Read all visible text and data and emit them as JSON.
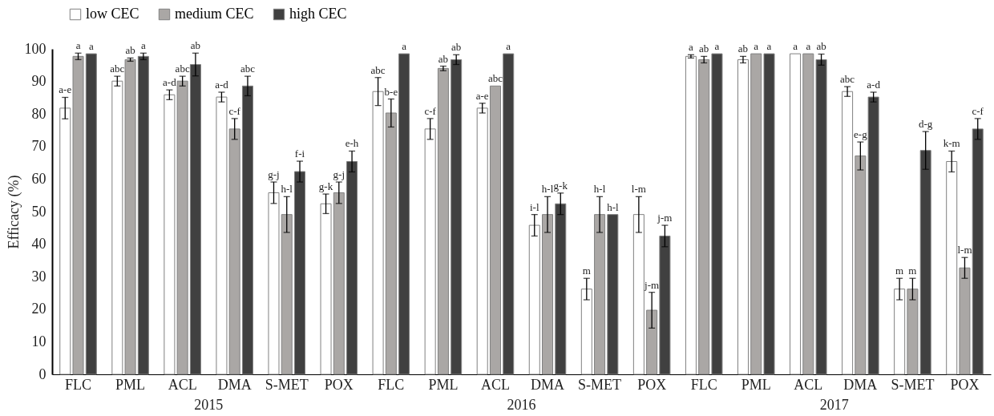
{
  "chart_data": {
    "type": "bar",
    "ylabel": "Efficacy (%)",
    "categories": [
      "FLC",
      "PML",
      "ACL",
      "DMA",
      "S-MET",
      "POX",
      "FLC",
      "PML",
      "ACL",
      "DMA",
      "S-MET",
      "POX",
      "FLC",
      "PML",
      "ACL",
      "DMA",
      "S-MET",
      "POX"
    ],
    "series": [
      {
        "name": "low CEC",
        "color": "#ffffff",
        "values": [
          81.8,
          90.1,
          85.9,
          85.2,
          55.8,
          52.4,
          86.9,
          75.4,
          81.8,
          45.8,
          26.2,
          49.1,
          97.7,
          96.7,
          98.5,
          86.9,
          26.2,
          65.4
        ],
        "errors": [
          3.3,
          1.5,
          1.5,
          1.5,
          3.3,
          3,
          4.3,
          3.2,
          1.5,
          3.3,
          3.3,
          5.5,
          0.5,
          1,
          null,
          1.5,
          3.3,
          3.2
        ],
        "value_labels": [
          "a-e",
          "abc",
          "a-d",
          "a-d",
          "g-j",
          "g-k",
          "abc",
          "c-f",
          "a-e",
          "i-l",
          "m",
          "l-m",
          "a",
          "ab",
          "a",
          "abc",
          "m",
          "k-m"
        ]
      },
      {
        "name": "medium CEC",
        "color": "#aaa7a5",
        "values": [
          97.7,
          96.7,
          90.1,
          75.4,
          49.1,
          55.8,
          80.3,
          94.0,
          88.6,
          49.1,
          49.1,
          19.7,
          96.7,
          98.5,
          98.5,
          67.1,
          26.2,
          32.7
        ],
        "errors": [
          1,
          0.5,
          1.5,
          3.2,
          5.5,
          3.3,
          4.3,
          0.7,
          null,
          5.5,
          5.5,
          5.5,
          1,
          null,
          null,
          4.3,
          3.3,
          3.2
        ],
        "value_labels": [
          "a",
          "ab",
          "abc",
          "c-f",
          "h-l",
          "g-j",
          "b-e",
          "ab",
          "abc",
          "h-l",
          "h-l",
          "j-m",
          "ab",
          "a",
          "a",
          "e-g",
          "m",
          "l-m"
        ]
      },
      {
        "name": "high CEC",
        "color": "#404040",
        "values": [
          98.5,
          97.7,
          95.2,
          88.6,
          62.3,
          65.4,
          98.5,
          96.7,
          98.5,
          52.4,
          49.1,
          42.5,
          98.5,
          98.5,
          96.7,
          85.2,
          68.8,
          75.4
        ],
        "errors": [
          null,
          1,
          3.5,
          3,
          3.2,
          3.2,
          null,
          1.5,
          null,
          3.3,
          null,
          3.3,
          null,
          null,
          1.7,
          1.5,
          5.8,
          3.2
        ],
        "value_labels": [
          "a",
          "a",
          "ab",
          "abc",
          "f-i",
          "e-h",
          "a",
          "ab",
          "a",
          "g-k",
          "h-l",
          "j-m",
          "a",
          "a",
          "ab",
          "a-d",
          "d-g",
          "c-f"
        ]
      }
    ],
    "annotations": [
      "2015",
      "2016",
      "2017"
    ],
    "ylim": [
      0,
      100
    ],
    "yticks": [
      0,
      10,
      20,
      30,
      40,
      50,
      60,
      70,
      80,
      90,
      100
    ],
    "grid": false,
    "legend": "top left"
  }
}
